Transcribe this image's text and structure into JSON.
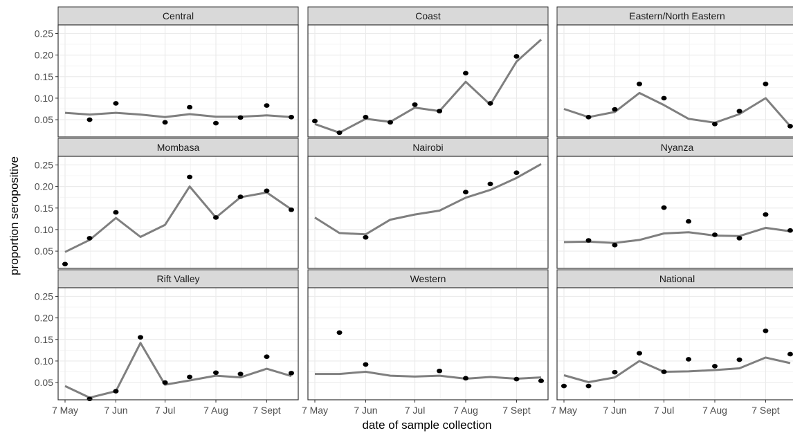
{
  "chart_data": {
    "type": "line",
    "layout": "facet-grid 3x3",
    "xlabel": "date of sample collection",
    "ylabel": "proportion seropositive",
    "x_tick_labels": [
      "7 May",
      "7 Jun",
      "7 Jul",
      "7 Aug",
      "7 Sept"
    ],
    "x_tick_dates": [
      "2020-05-07",
      "2020-06-07",
      "2020-07-07",
      "2020-08-07",
      "2020-09-07"
    ],
    "x_dates": [
      "2020-05-07",
      "2020-05-22",
      "2020-06-07",
      "2020-06-22",
      "2020-07-07",
      "2020-07-22",
      "2020-08-07",
      "2020-08-22",
      "2020-09-07",
      "2020-09-22"
    ],
    "y_ticks": [
      "0.05",
      "0.10",
      "0.15",
      "0.20",
      "0.25"
    ],
    "ylim": [
      0.01,
      0.27
    ],
    "grid": true,
    "colors": {
      "line": "#7f7f7f",
      "point": "#000000",
      "strip": "#d9d9d9",
      "grid": "#ebebeb",
      "border": "#333333"
    },
    "panels": [
      {
        "name": "Central",
        "line": [
          0.066,
          0.062,
          0.066,
          0.062,
          0.056,
          0.063,
          0.057,
          0.057,
          0.06,
          0.056
        ],
        "points": [
          null,
          0.05,
          0.088,
          null,
          0.044,
          0.079,
          0.042,
          0.055,
          0.083,
          0.056
        ]
      },
      {
        "name": "Coast",
        "line": [
          0.04,
          0.02,
          0.052,
          0.045,
          0.078,
          0.07,
          0.138,
          0.085,
          0.185,
          0.236
        ],
        "points": [
          0.047,
          0.02,
          0.056,
          0.044,
          0.085,
          0.07,
          0.158,
          0.088,
          0.197,
          null
        ]
      },
      {
        "name": "Eastern/North Eastern",
        "line": [
          0.075,
          0.056,
          0.068,
          0.112,
          0.084,
          0.052,
          0.043,
          0.063,
          0.1,
          0.035
        ],
        "points": [
          null,
          0.056,
          0.074,
          0.133,
          0.1,
          null,
          0.04,
          0.07,
          0.133,
          0.035
        ]
      },
      {
        "name": "Mombasa",
        "line": [
          0.048,
          0.076,
          0.127,
          0.083,
          0.111,
          0.2,
          0.128,
          0.175,
          0.186,
          0.147
        ],
        "points": [
          0.02,
          0.08,
          0.14,
          null,
          null,
          0.222,
          0.128,
          0.176,
          0.19,
          0.146
        ]
      },
      {
        "name": "Nairobi",
        "line": [
          0.128,
          0.092,
          0.089,
          0.123,
          0.135,
          0.144,
          0.174,
          0.192,
          0.22,
          0.252
        ],
        "points": [
          null,
          null,
          0.082,
          null,
          null,
          null,
          0.187,
          0.206,
          0.232,
          null
        ]
      },
      {
        "name": "Nyanza",
        "line": [
          0.071,
          0.072,
          0.069,
          0.076,
          0.091,
          0.094,
          0.086,
          0.085,
          0.104,
          0.096
        ],
        "points": [
          null,
          0.075,
          0.064,
          null,
          0.151,
          0.119,
          0.088,
          0.08,
          0.135,
          0.098
        ]
      },
      {
        "name": "Rift Valley",
        "line": [
          0.042,
          0.015,
          0.03,
          0.142,
          0.045,
          0.055,
          0.066,
          0.062,
          0.082,
          0.065
        ],
        "points": [
          null,
          0.012,
          0.03,
          0.155,
          0.05,
          0.063,
          0.073,
          0.07,
          0.11,
          0.072
        ]
      },
      {
        "name": "Western",
        "line": [
          0.07,
          0.07,
          0.075,
          0.066,
          0.064,
          0.066,
          0.059,
          0.063,
          0.059,
          0.062
        ],
        "points": [
          null,
          0.166,
          0.092,
          null,
          null,
          0.077,
          0.06,
          null,
          0.058,
          0.054
        ]
      },
      {
        "name": "National",
        "line": [
          0.067,
          0.051,
          0.062,
          0.1,
          0.075,
          0.076,
          0.079,
          0.083,
          0.108,
          0.095
        ],
        "points": [
          0.042,
          0.042,
          0.074,
          0.118,
          0.075,
          0.104,
          0.088,
          0.103,
          0.17,
          0.116
        ]
      }
    ]
  }
}
